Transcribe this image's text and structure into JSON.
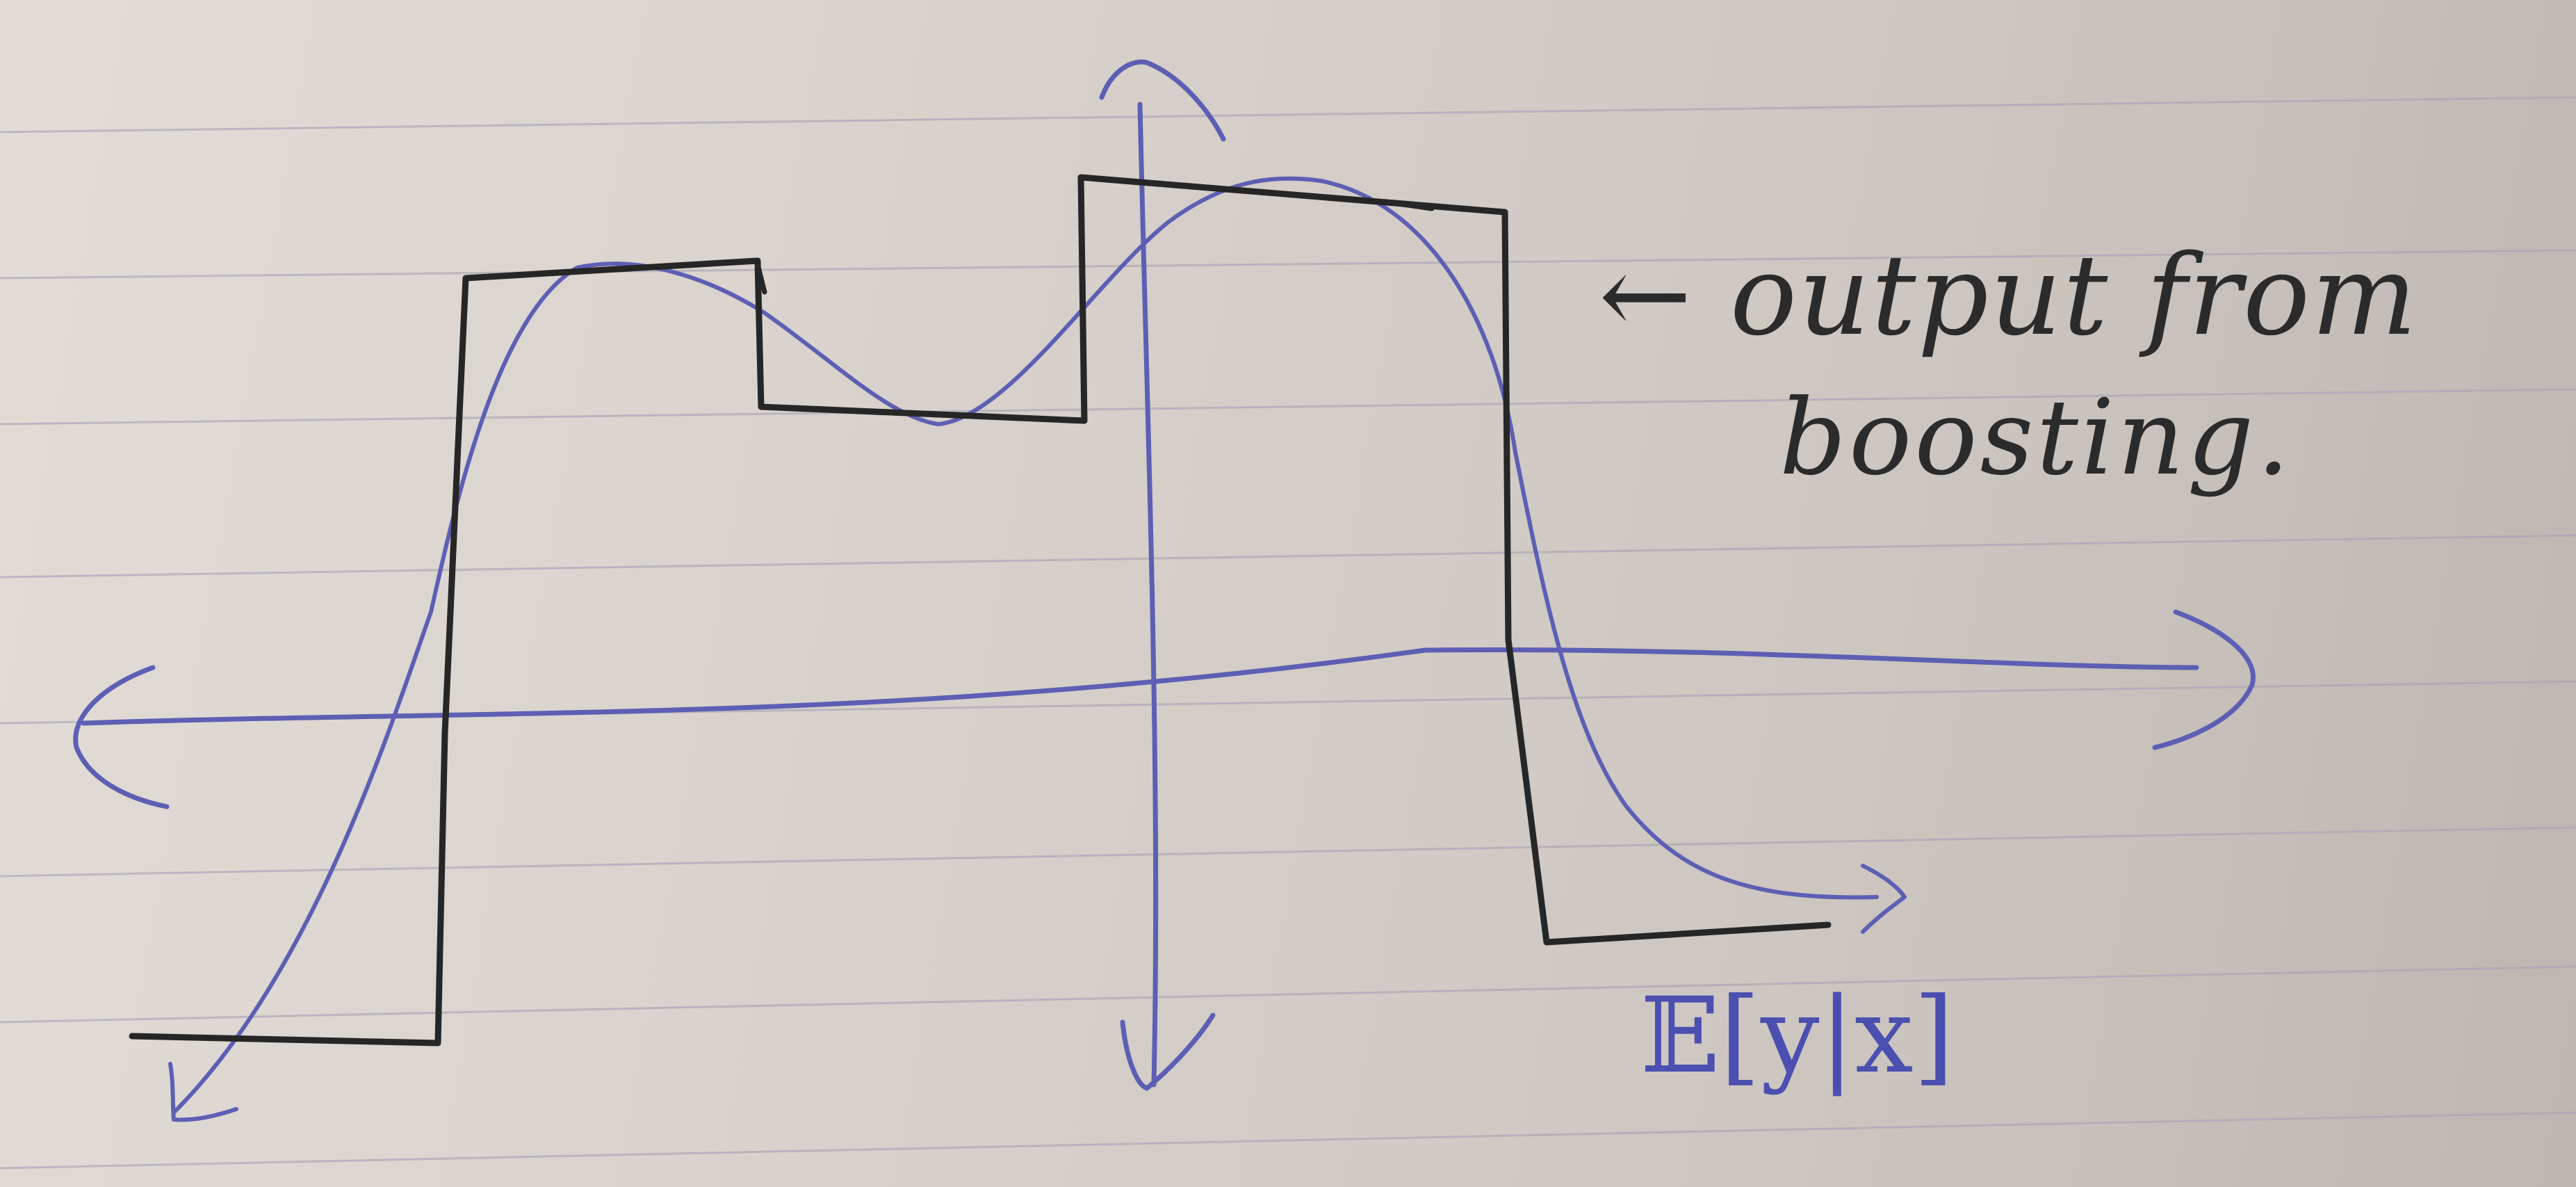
{
  "annotations": {
    "output_note_line1": "← output from",
    "output_note_line2": "boosting.",
    "axis_label": "𝔼[y|x]"
  },
  "colors": {
    "paper": "#dcd5d0",
    "rule_lines": "#a9a4b4",
    "blue_ink": "#5d5fb4",
    "black_ink": "#262626"
  }
}
